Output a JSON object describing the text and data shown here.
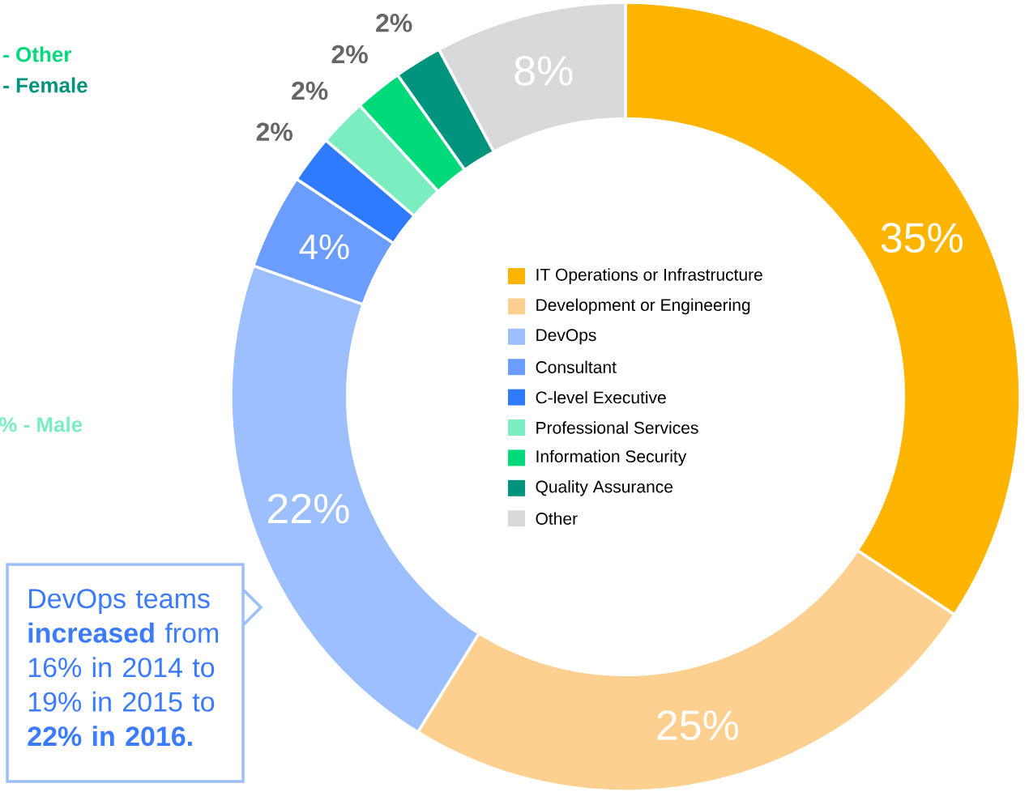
{
  "chart_data": {
    "type": "donut",
    "categories": [
      "IT Operations or Infrastructure",
      "Development or Engineering",
      "DevOps",
      "Consultant",
      "C-level Executive",
      "Professional Services",
      "Information Security",
      "Quality Assurance",
      "Other"
    ],
    "values": [
      35,
      25,
      22,
      4,
      2,
      2,
      2,
      2,
      8
    ],
    "value_labels": [
      "35%",
      "25%",
      "22%",
      "4%",
      "2%",
      "2%",
      "2%",
      "2%",
      "8%"
    ],
    "colors": [
      "#ffb400",
      "#fed08f",
      "#9bbfff",
      "#6a9dff",
      "#2f7bff",
      "#7aeec0",
      "#00d97a",
      "#00937e",
      "#d9d9d9"
    ],
    "legend": "center",
    "annotations": [
      "-  Other",
      "-  Female",
      "%  -  Male",
      "DevOps teams **increased** from 16% in 2014 to 19% in 2015 to **22% in 2016.**"
    ]
  }
}
